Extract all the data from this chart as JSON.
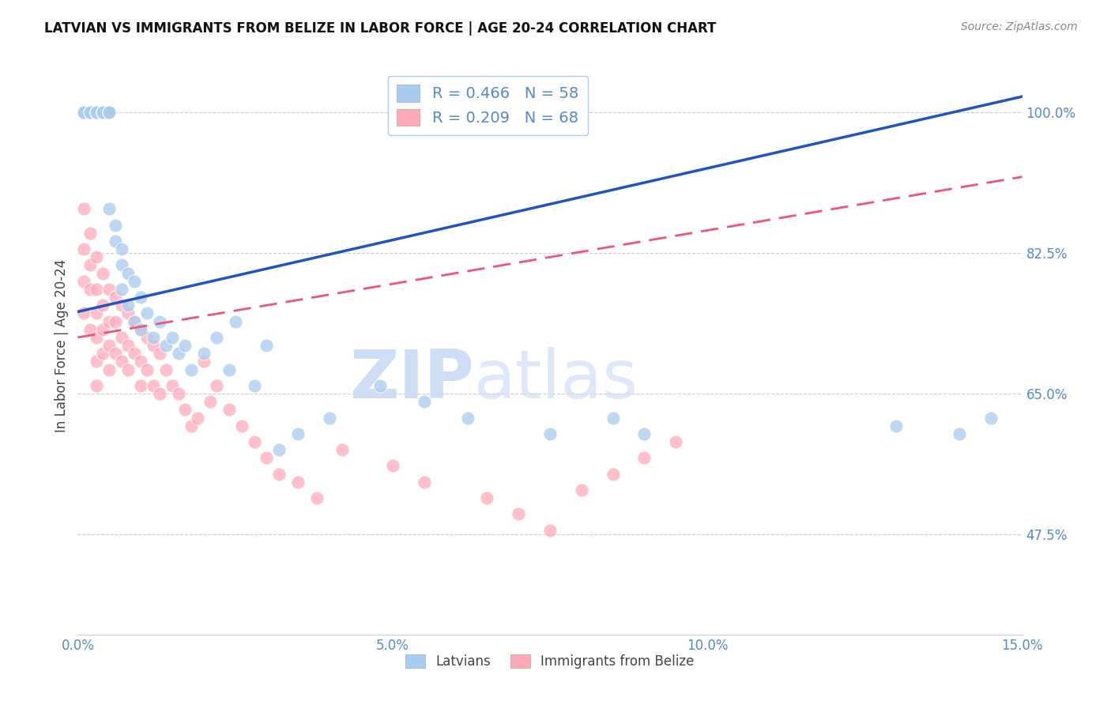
{
  "title": "LATVIAN VS IMMIGRANTS FROM BELIZE IN LABOR FORCE | AGE 20-24 CORRELATION CHART",
  "source": "Source: ZipAtlas.com",
  "ylabel": "In Labor Force | Age 20-24",
  "legend_latvians": "Latvians",
  "legend_belize": "Immigrants from Belize",
  "latvian_R": 0.466,
  "latvian_N": 58,
  "belize_R": 0.209,
  "belize_N": 68,
  "xmin": 0.0,
  "xmax": 0.15,
  "ymin": 0.35,
  "ymax": 1.07,
  "yticks": [
    0.475,
    0.65,
    0.825,
    1.0
  ],
  "ytick_labels": [
    "47.5%",
    "65.0%",
    "82.5%",
    "100.0%"
  ],
  "xticks": [
    0.0,
    0.05,
    0.1,
    0.15
  ],
  "xtick_labels": [
    "0.0%",
    "5.0%",
    "10.0%",
    "15.0%"
  ],
  "grid_color": "#cccccc",
  "axis_color": "#5588cc",
  "latvian_color": "#aaccee",
  "belize_color": "#ffaabb",
  "latvian_line_color": "#2255bb",
  "belize_line_color": "#ee5577",
  "watermark_zip": "ZIP",
  "watermark_atlas": "atlas",
  "latvian_x": [
    0.001,
    0.001,
    0.001,
    0.002,
    0.002,
    0.002,
    0.002,
    0.003,
    0.003,
    0.003,
    0.003,
    0.003,
    0.004,
    0.004,
    0.004,
    0.004,
    0.004,
    0.005,
    0.005,
    0.005,
    0.005,
    0.006,
    0.006,
    0.007,
    0.007,
    0.007,
    0.008,
    0.008,
    0.009,
    0.009,
    0.01,
    0.01,
    0.011,
    0.012,
    0.013,
    0.014,
    0.015,
    0.016,
    0.017,
    0.018,
    0.02,
    0.022,
    0.024,
    0.025,
    0.028,
    0.03,
    0.032,
    0.035,
    0.04,
    0.048,
    0.055,
    0.062,
    0.075,
    0.085,
    0.09,
    0.13,
    0.14,
    0.145
  ],
  "latvian_y": [
    1.0,
    1.0,
    1.0,
    1.0,
    1.0,
    1.0,
    1.0,
    1.0,
    1.0,
    1.0,
    1.0,
    1.0,
    1.0,
    1.0,
    1.0,
    1.0,
    1.0,
    1.0,
    1.0,
    1.0,
    0.88,
    0.86,
    0.84,
    0.83,
    0.81,
    0.78,
    0.8,
    0.76,
    0.79,
    0.74,
    0.77,
    0.73,
    0.75,
    0.72,
    0.74,
    0.71,
    0.72,
    0.7,
    0.71,
    0.68,
    0.7,
    0.72,
    0.68,
    0.74,
    0.66,
    0.71,
    0.58,
    0.6,
    0.62,
    0.66,
    0.64,
    0.62,
    0.6,
    0.62,
    0.6,
    0.61,
    0.6,
    0.62
  ],
  "belize_x": [
    0.001,
    0.001,
    0.001,
    0.001,
    0.002,
    0.002,
    0.002,
    0.002,
    0.003,
    0.003,
    0.003,
    0.003,
    0.003,
    0.003,
    0.004,
    0.004,
    0.004,
    0.004,
    0.005,
    0.005,
    0.005,
    0.005,
    0.006,
    0.006,
    0.006,
    0.007,
    0.007,
    0.007,
    0.008,
    0.008,
    0.008,
    0.009,
    0.009,
    0.01,
    0.01,
    0.01,
    0.011,
    0.011,
    0.012,
    0.012,
    0.013,
    0.013,
    0.014,
    0.015,
    0.016,
    0.017,
    0.018,
    0.019,
    0.02,
    0.021,
    0.022,
    0.024,
    0.026,
    0.028,
    0.03,
    0.032,
    0.035,
    0.038,
    0.042,
    0.05,
    0.055,
    0.065,
    0.07,
    0.075,
    0.08,
    0.085,
    0.09,
    0.095
  ],
  "belize_y": [
    0.88,
    0.83,
    0.79,
    0.75,
    0.85,
    0.81,
    0.78,
    0.73,
    0.82,
    0.78,
    0.75,
    0.72,
    0.69,
    0.66,
    0.8,
    0.76,
    0.73,
    0.7,
    0.78,
    0.74,
    0.71,
    0.68,
    0.77,
    0.74,
    0.7,
    0.76,
    0.72,
    0.69,
    0.75,
    0.71,
    0.68,
    0.74,
    0.7,
    0.73,
    0.69,
    0.66,
    0.72,
    0.68,
    0.71,
    0.66,
    0.7,
    0.65,
    0.68,
    0.66,
    0.65,
    0.63,
    0.61,
    0.62,
    0.69,
    0.64,
    0.66,
    0.63,
    0.61,
    0.59,
    0.57,
    0.55,
    0.54,
    0.52,
    0.58,
    0.56,
    0.54,
    0.52,
    0.5,
    0.48,
    0.53,
    0.55,
    0.57,
    0.59
  ]
}
